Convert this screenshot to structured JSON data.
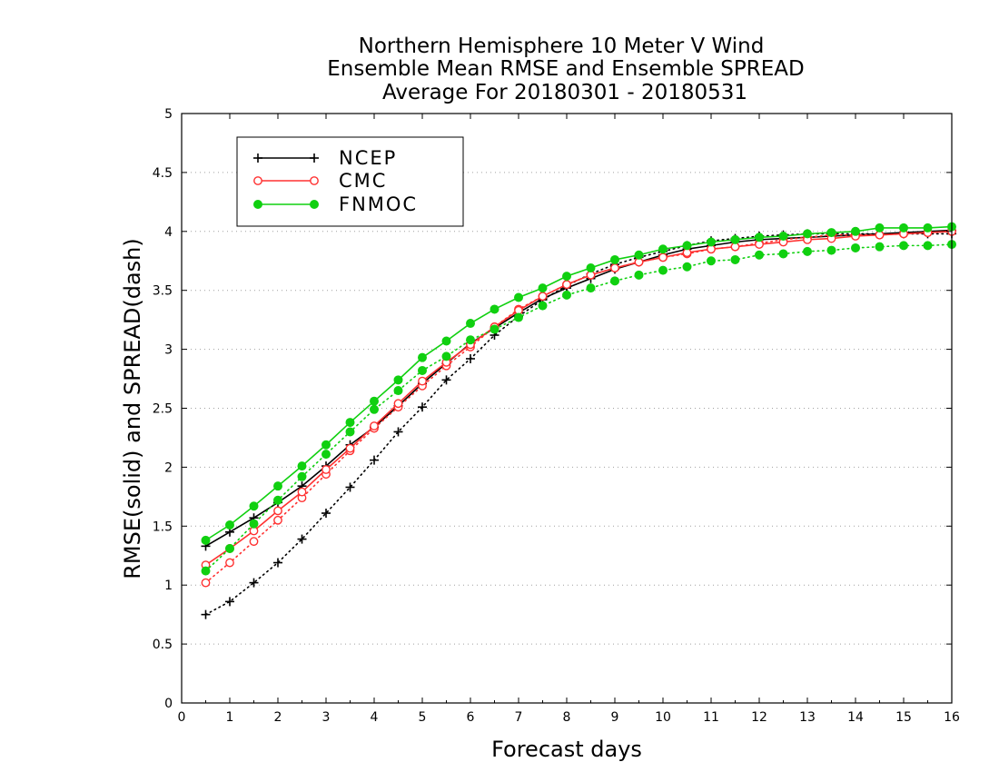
{
  "chart_data": {
    "type": "line",
    "title": [
      "Northern Hemisphere 10 Meter V Wind",
      "Ensemble Mean RMSE and Ensemble SPREAD",
      "Average For 20180301 - 20180531"
    ],
    "xlabel": "Forecast days",
    "ylabel": "RMSE(solid) and SPREAD(dash)",
    "xlim": [
      0,
      16
    ],
    "ylim": [
      0,
      5
    ],
    "xticks": [
      "0",
      "1",
      "2",
      "3",
      "4",
      "5",
      "6",
      "7",
      "8",
      "9",
      "10",
      "11",
      "12",
      "13",
      "14",
      "15",
      "16"
    ],
    "yticks": [
      "0",
      "0.5",
      "1",
      "1.5",
      "2",
      "2.5",
      "3",
      "3.5",
      "4",
      "4.5",
      "5"
    ],
    "grid": "horizontal dotted",
    "legend_position": "top-left",
    "x": [
      0.5,
      1,
      1.5,
      2,
      2.5,
      3,
      3.5,
      4,
      4.5,
      5,
      5.5,
      6,
      6.5,
      7,
      7.5,
      8,
      8.5,
      9,
      9.5,
      10,
      10.5,
      11,
      11.5,
      12,
      12.5,
      13,
      13.5,
      14,
      14.5,
      15,
      15.5,
      16
    ],
    "series": [
      {
        "name": "NCEP",
        "color": "#000000",
        "marker": "plus",
        "rmse": [
          1.33,
          1.45,
          1.57,
          1.7,
          1.84,
          2.01,
          2.19,
          2.34,
          2.52,
          2.71,
          2.88,
          3.05,
          3.18,
          3.31,
          3.43,
          3.52,
          3.6,
          3.68,
          3.74,
          3.8,
          3.85,
          3.88,
          3.91,
          3.93,
          3.94,
          3.95,
          3.96,
          3.97,
          3.98,
          3.99,
          4.0,
          4.01
        ],
        "spread": [
          0.75,
          0.86,
          1.02,
          1.19,
          1.39,
          1.61,
          1.83,
          2.06,
          2.3,
          2.51,
          2.74,
          2.92,
          3.12,
          3.28,
          3.42,
          3.54,
          3.64,
          3.72,
          3.78,
          3.83,
          3.88,
          3.92,
          3.94,
          3.96,
          3.97,
          3.98,
          3.98,
          3.98,
          3.98,
          3.98,
          3.98,
          3.98
        ]
      },
      {
        "name": "CMC",
        "color": "#ff3030",
        "marker": "open-circle",
        "rmse": [
          1.17,
          1.31,
          1.46,
          1.63,
          1.79,
          1.98,
          2.16,
          2.35,
          2.54,
          2.73,
          2.89,
          3.04,
          3.19,
          3.33,
          3.45,
          3.55,
          3.63,
          3.69,
          3.74,
          3.78,
          3.82,
          3.85,
          3.87,
          3.89,
          3.91,
          3.93,
          3.94,
          3.96,
          3.97,
          3.98,
          3.99,
          4.0
        ],
        "spread": [
          1.02,
          1.19,
          1.37,
          1.55,
          1.74,
          1.94,
          2.14,
          2.33,
          2.51,
          2.69,
          2.86,
          3.02,
          3.19,
          3.34,
          3.45,
          3.55,
          3.63,
          3.69,
          3.74,
          3.78,
          3.81,
          3.85,
          3.87,
          3.9,
          3.93,
          3.95,
          3.97,
          3.97,
          3.97,
          3.98,
          3.99,
          4.0
        ]
      },
      {
        "name": "FNMOC",
        "color": "#10d010",
        "marker": "filled-circle",
        "rmse": [
          1.38,
          1.51,
          1.67,
          1.84,
          2.01,
          2.19,
          2.38,
          2.56,
          2.74,
          2.93,
          3.07,
          3.22,
          3.34,
          3.44,
          3.52,
          3.62,
          3.69,
          3.76,
          3.8,
          3.85,
          3.88,
          3.91,
          3.93,
          3.95,
          3.96,
          3.98,
          3.99,
          4.0,
          4.03,
          4.03,
          4.03,
          4.04
        ],
        "spread": [
          1.12,
          1.31,
          1.52,
          1.72,
          1.92,
          2.11,
          2.3,
          2.49,
          2.65,
          2.82,
          2.94,
          3.08,
          3.17,
          3.27,
          3.37,
          3.46,
          3.52,
          3.58,
          3.63,
          3.67,
          3.7,
          3.75,
          3.76,
          3.8,
          3.81,
          3.83,
          3.84,
          3.86,
          3.87,
          3.88,
          3.88,
          3.89
        ]
      }
    ]
  }
}
